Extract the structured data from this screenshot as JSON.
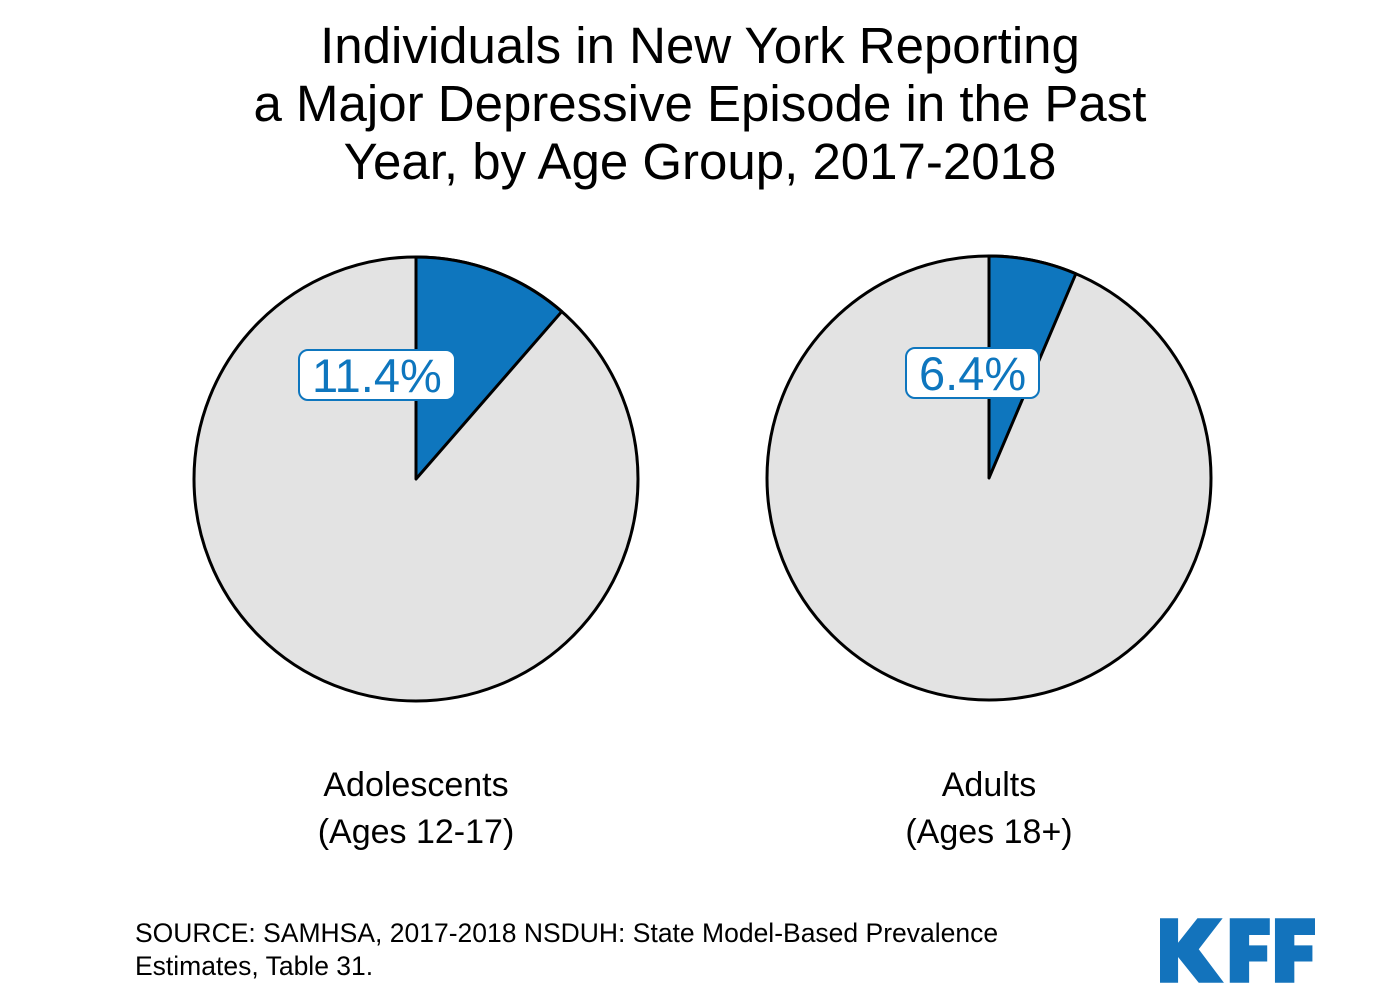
{
  "title": {
    "lines": [
      "Individuals in New York Reporting",
      "a Major Depressive Episode in the Past",
      "Year, by Age Group, 2017-2018"
    ]
  },
  "chart_data": {
    "type": "pie",
    "title": "Individuals in New York Reporting a Major Depressive Episode in the Past Year, by Age Group, 2017-2018",
    "legend": "none",
    "start_angle_deg": 0,
    "direction": "clockwise",
    "slice_color": "#0E76BE",
    "remainder_color": "#E3E3E3",
    "outline_color": "#000000",
    "charts": [
      {
        "category": "Adolescents (Ages 12-17)",
        "caption_lines": [
          "Adolescents",
          "(Ages 12-17)"
        ],
        "value": 11.4,
        "remainder": 88.6,
        "value_label": "11.4%"
      },
      {
        "category": "Adults (Ages 18+)",
        "caption_lines": [
          "Adults",
          "(Ages 18+)"
        ],
        "value": 6.4,
        "remainder": 93.6,
        "value_label": "6.4%"
      }
    ]
  },
  "source": {
    "lines": [
      "SOURCE: SAMHSA, 2017-2018 NSDUH: State Model-Based Prevalence",
      "Estimates, Table 31."
    ],
    "text": "SOURCE: SAMHSA, 2017-2018 NSDUH: State Model-Based Prevalence Estimates, Table 31."
  },
  "branding": {
    "logo_text": "KFF",
    "logo_color": "#1373BC"
  }
}
